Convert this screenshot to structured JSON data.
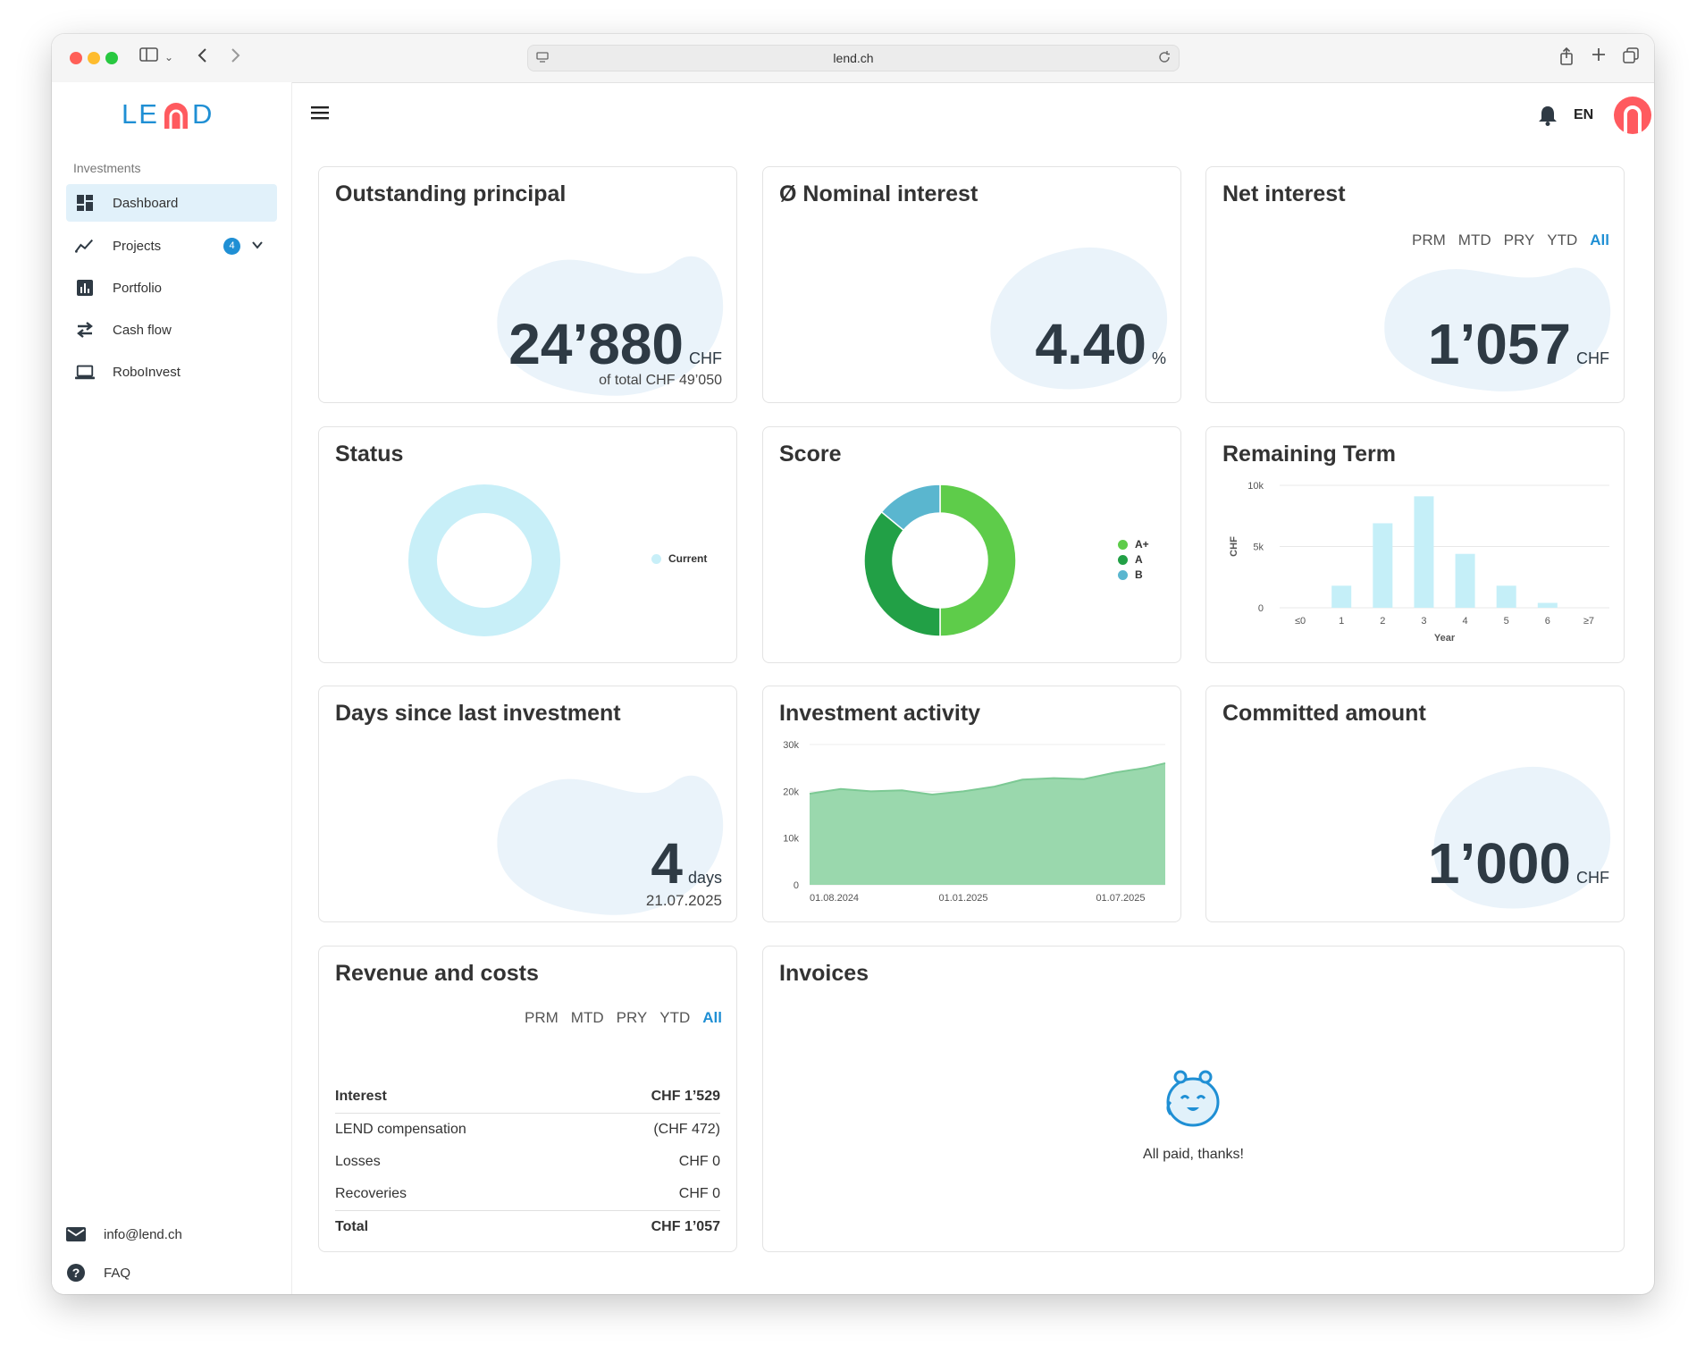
{
  "browser": {
    "url": "lend.ch"
  },
  "brand": {
    "logo_text": "LEND",
    "accent": "#1f8fd4",
    "red": "#ff5a5f"
  },
  "sidebar": {
    "section_label": "Investments",
    "items": [
      {
        "label": "Dashboard",
        "icon": "dashboard-icon",
        "active": true
      },
      {
        "label": "Projects",
        "icon": "trend-icon",
        "badge": "4"
      },
      {
        "label": "Portfolio",
        "icon": "bar-chart-icon"
      },
      {
        "label": "Cash flow",
        "icon": "swap-icon"
      },
      {
        "label": "RoboInvest",
        "icon": "laptop-icon"
      }
    ],
    "footer": [
      {
        "label": "info@lend.ch",
        "icon": "mail-icon"
      },
      {
        "label": "FAQ",
        "icon": "help-icon"
      }
    ]
  },
  "topbar": {
    "language": "EN"
  },
  "cards": {
    "outstanding": {
      "title": "Outstanding principal",
      "value": "24’880",
      "unit": "CHF",
      "sub": "of total CHF 49’050"
    },
    "nominal": {
      "title": "Ø Nominal interest",
      "value": "4.40",
      "unit": "%"
    },
    "net": {
      "title": "Net interest",
      "value": "1’057",
      "unit": "CHF"
    },
    "status": {
      "title": "Status"
    },
    "score": {
      "title": "Score"
    },
    "remaining": {
      "title": "Remaining Term"
    },
    "days": {
      "title": "Days since last investment",
      "value": "4",
      "unit": "days",
      "sub": "21.07.2025"
    },
    "activity": {
      "title": "Investment activity"
    },
    "committed": {
      "title": "Committed amount",
      "value": "1’000",
      "unit": "CHF"
    },
    "revenue": {
      "title": "Revenue and costs"
    },
    "invoices": {
      "title": "Invoices",
      "empty_text": "All paid, thanks!"
    }
  },
  "periods": {
    "items": [
      "PRM",
      "MTD",
      "PRY",
      "YTD",
      "All"
    ],
    "selected": "All"
  },
  "revenue_table": [
    {
      "label": "Interest",
      "value": "CHF 1’529",
      "bold": true
    },
    {
      "label": "LEND compensation",
      "value": "(CHF 472)",
      "bold": false
    },
    {
      "label": "Losses",
      "value": "CHF 0",
      "bold": false
    },
    {
      "label": "Recoveries",
      "value": "CHF 0",
      "bold": false
    },
    {
      "label": "Total",
      "value": "CHF 1’057",
      "bold": true
    }
  ],
  "chart_data": [
    {
      "type": "pie",
      "title": "Status",
      "categories": [
        "Current"
      ],
      "values": [
        100
      ],
      "colors": [
        "#c8eff8"
      ],
      "legend": "right"
    },
    {
      "type": "pie",
      "title": "Score",
      "categories": [
        "A+",
        "A",
        "B"
      ],
      "values": [
        50,
        36,
        14
      ],
      "colors": [
        "#5ecc4a",
        "#22a046",
        "#5ab6cf"
      ],
      "legend": "right"
    },
    {
      "type": "bar",
      "title": "Remaining Term",
      "categories": [
        "≤0",
        "1",
        "2",
        "3",
        "4",
        "5",
        "6",
        "≥7"
      ],
      "values": [
        0,
        1800,
        6900,
        9100,
        4400,
        1800,
        400,
        0
      ],
      "xlabel": "Year",
      "ylabel": "CHF",
      "yticks": [
        "0",
        "5k",
        "10k"
      ],
      "ylim": [
        0,
        10000
      ],
      "color": "#c5eff8",
      "grid": true
    },
    {
      "type": "area",
      "title": "Investment activity",
      "x": [
        "01.08.2024",
        "01.09.2024",
        "01.10.2024",
        "01.11.2024",
        "01.12.2024",
        "01.01.2025",
        "01.02.2025",
        "01.03.2025",
        "01.04.2025",
        "01.05.2025",
        "01.06.2025",
        "01.07.2025",
        "21.07.2025"
      ],
      "values": [
        19500,
        20500,
        20000,
        20200,
        19300,
        20000,
        21000,
        22500,
        22800,
        22600,
        24000,
        25000,
        26000
      ],
      "xticks": [
        "01.08.2024",
        "01.01.2025",
        "01.07.2025"
      ],
      "yticks": [
        "0",
        "10k",
        "20k",
        "30k"
      ],
      "ylim": [
        0,
        30000
      ],
      "color": "#9ad8ad",
      "line_color": "#7cc994",
      "grid": true
    }
  ]
}
